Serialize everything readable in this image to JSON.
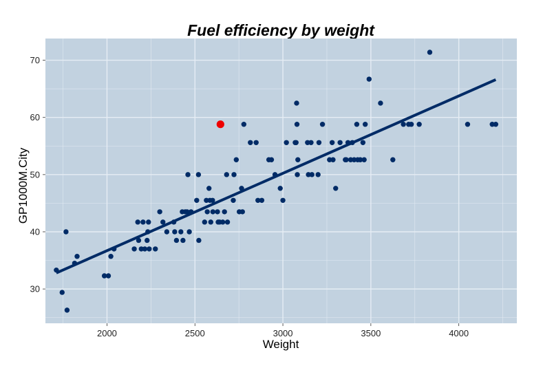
{
  "chart_data": {
    "type": "scatter",
    "title": "Fuel efficiency by weight",
    "xlabel": "Weight",
    "ylabel": "GP1000M.City",
    "xlim": [
      1650,
      4330
    ],
    "ylim": [
      24,
      73.8
    ],
    "x_ticks": [
      2000,
      2500,
      3000,
      3500,
      4000
    ],
    "y_ticks": [
      30,
      40,
      50,
      60,
      70
    ],
    "grid": true,
    "colors": {
      "panel": "#c2d2e0",
      "grid": "#e6edf4",
      "points": "#002b66",
      "highlight": "#ee0000",
      "fit_line": "#002b66"
    },
    "series": [
      {
        "values": [
          [
            1712,
            33.3
          ],
          [
            1745,
            29.4
          ],
          [
            1767,
            40.0
          ],
          [
            1773,
            26.3
          ],
          [
            1816,
            34.5
          ],
          [
            1830,
            35.7
          ],
          [
            1985,
            32.3
          ],
          [
            2008,
            32.3
          ],
          [
            2022,
            35.7
          ],
          [
            2040,
            37.0
          ],
          [
            2155,
            37.0
          ],
          [
            2175,
            41.7
          ],
          [
            2180,
            38.5
          ],
          [
            2195,
            37.0
          ],
          [
            2205,
            41.7
          ],
          [
            2215,
            37.0
          ],
          [
            2228,
            38.5
          ],
          [
            2232,
            40.0
          ],
          [
            2236,
            41.7
          ],
          [
            2240,
            37.0
          ],
          [
            2275,
            37.0
          ],
          [
            2300,
            43.5
          ],
          [
            2318,
            41.7
          ],
          [
            2340,
            40.0
          ],
          [
            2380,
            41.7
          ],
          [
            2385,
            40.0
          ],
          [
            2395,
            38.5
          ],
          [
            2420,
            40.0
          ],
          [
            2428,
            43.5
          ],
          [
            2432,
            38.5
          ],
          [
            2445,
            43.5
          ],
          [
            2455,
            43.5
          ],
          [
            2460,
            50.0
          ],
          [
            2468,
            40.0
          ],
          [
            2478,
            43.5
          ],
          [
            2510,
            45.5
          ],
          [
            2520,
            50.0
          ],
          [
            2522,
            38.5
          ],
          [
            2555,
            41.7
          ],
          [
            2565,
            45.5
          ],
          [
            2570,
            43.5
          ],
          [
            2580,
            47.6
          ],
          [
            2585,
            45.5
          ],
          [
            2590,
            41.7
          ],
          [
            2600,
            45.5
          ],
          [
            2602,
            43.5
          ],
          [
            2628,
            43.5
          ],
          [
            2632,
            41.7
          ],
          [
            2640,
            41.7
          ],
          [
            2658,
            41.7
          ],
          [
            2668,
            43.5
          ],
          [
            2680,
            50.0
          ],
          [
            2685,
            41.7
          ],
          [
            2718,
            45.5
          ],
          [
            2722,
            50.0
          ],
          [
            2735,
            52.6
          ],
          [
            2752,
            43.5
          ],
          [
            2765,
            47.6
          ],
          [
            2770,
            43.5
          ],
          [
            2778,
            58.8
          ],
          [
            2815,
            55.6
          ],
          [
            2848,
            55.6
          ],
          [
            2858,
            45.5
          ],
          [
            2880,
            45.5
          ],
          [
            2920,
            52.6
          ],
          [
            2935,
            52.6
          ],
          [
            2955,
            50.0
          ],
          [
            2985,
            47.6
          ],
          [
            3000,
            45.5
          ],
          [
            3020,
            55.6
          ],
          [
            3070,
            55.6
          ],
          [
            3075,
            55.6
          ],
          [
            3078,
            62.5
          ],
          [
            3080,
            58.8
          ],
          [
            3082,
            50.0
          ],
          [
            3085,
            52.6
          ],
          [
            3140,
            55.6
          ],
          [
            3145,
            50.0
          ],
          [
            3160,
            55.6
          ],
          [
            3165,
            50.0
          ],
          [
            3200,
            50.0
          ],
          [
            3205,
            55.6
          ],
          [
            3225,
            58.8
          ],
          [
            3265,
            52.6
          ],
          [
            3280,
            55.6
          ],
          [
            3285,
            52.6
          ],
          [
            3300,
            47.6
          ],
          [
            3325,
            55.6
          ],
          [
            3355,
            52.6
          ],
          [
            3360,
            52.6
          ],
          [
            3370,
            55.6
          ],
          [
            3385,
            52.6
          ],
          [
            3395,
            55.6
          ],
          [
            3405,
            52.6
          ],
          [
            3420,
            58.8
          ],
          [
            3425,
            52.6
          ],
          [
            3440,
            52.6
          ],
          [
            3455,
            55.6
          ],
          [
            3462,
            52.6
          ],
          [
            3468,
            58.8
          ],
          [
            3490,
            66.7
          ],
          [
            3555,
            62.5
          ],
          [
            3625,
            52.6
          ],
          [
            3685,
            58.8
          ],
          [
            3715,
            58.8
          ],
          [
            3730,
            58.8
          ],
          [
            3775,
            58.8
          ],
          [
            3835,
            71.4
          ],
          [
            4050,
            58.8
          ],
          [
            4190,
            58.8
          ],
          [
            4210,
            58.8
          ]
        ]
      },
      {
        "values": [
          [
            2645,
            58.8
          ]
        ]
      }
    ],
    "fit_line": {
      "x": [
        1712,
        4210
      ],
      "y": [
        32.8,
        66.6
      ]
    }
  }
}
